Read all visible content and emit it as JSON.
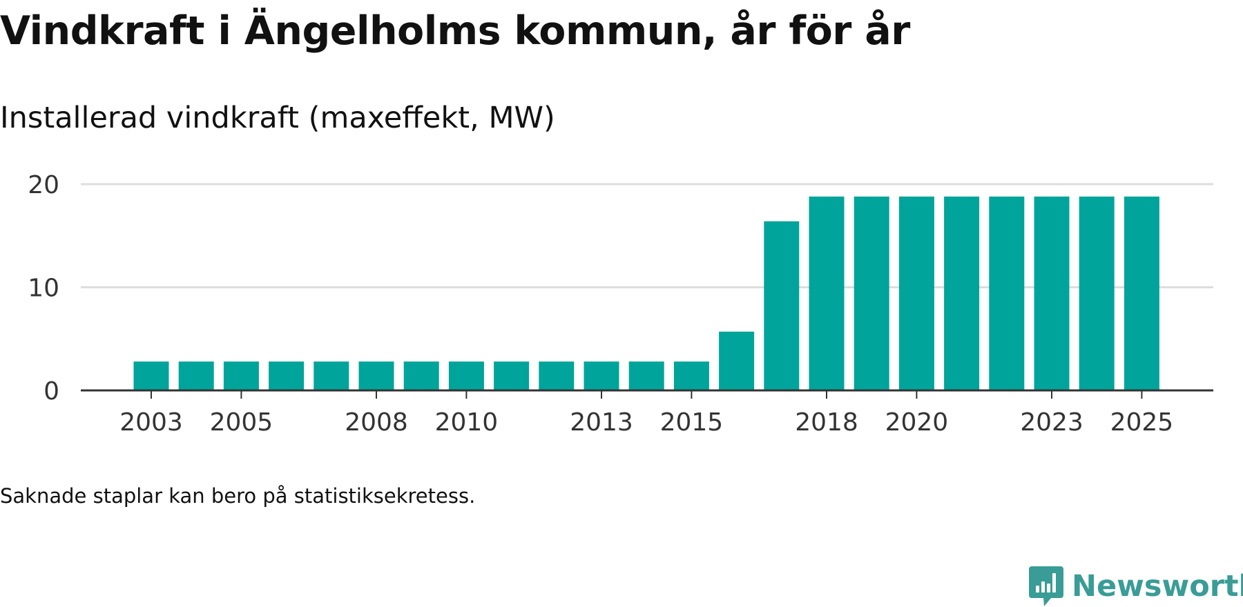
{
  "title": "Vindkraft i Ängelholms kommun, år för år",
  "subtitle": "Installerad vindkraft (maxeffekt, MW)",
  "note": "Saknade staplar kan bero på statistiksekretess.",
  "brand": {
    "name": "Newsworthy",
    "color": "#3a9c96"
  },
  "colors": {
    "bar": "#00a49a",
    "grid": "#dddddd",
    "axis": "#333333",
    "tick_text": "#333333"
  },
  "chart_data": {
    "type": "bar",
    "title": "Installerad vindkraft (maxeffekt, MW)",
    "xlabel": "",
    "ylabel": "",
    "ylim": [
      0,
      20
    ],
    "y_ticks": [
      0,
      10,
      20
    ],
    "grid": true,
    "categories": [
      "2003",
      "2004",
      "2005",
      "2006",
      "2007",
      "2008",
      "2009",
      "2010",
      "2011",
      "2012",
      "2013",
      "2014",
      "2015",
      "2016",
      "2017",
      "2018",
      "2019",
      "2020",
      "2021",
      "2022",
      "2023",
      "2024",
      "2025"
    ],
    "values": [
      2.8,
      2.8,
      2.8,
      2.8,
      2.8,
      2.8,
      2.8,
      2.8,
      2.8,
      2.8,
      2.8,
      2.8,
      2.8,
      5.7,
      16.4,
      18.8,
      18.8,
      18.8,
      18.8,
      18.8,
      18.8,
      18.8,
      18.8
    ],
    "x_tick_labels": [
      "2003",
      "2005",
      "2008",
      "2010",
      "2013",
      "2015",
      "2018",
      "2020",
      "2023",
      "2025"
    ]
  }
}
